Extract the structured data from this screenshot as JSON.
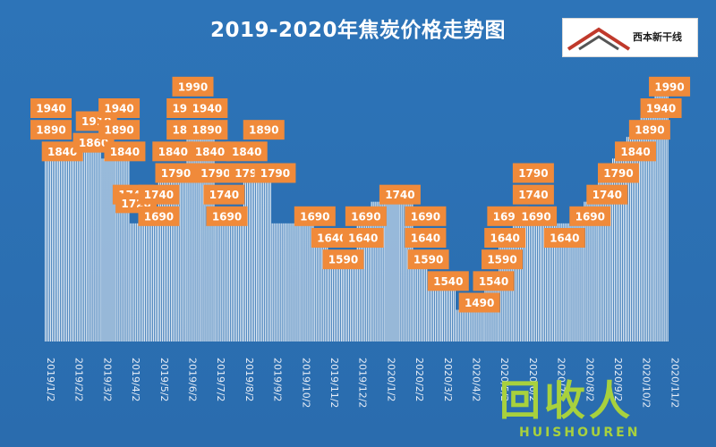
{
  "chart_data": {
    "type": "bar",
    "title": "2019-2020年焦炭价格走势图",
    "xlabel": "",
    "ylabel": "",
    "ylim": [
      1400,
      2000
    ],
    "categories": [
      "2019/1/2",
      "2019/2/2",
      "2019/3/2",
      "2019/4/2",
      "2019/5/2",
      "2019/6/2",
      "2019/7/2",
      "2019/8/2",
      "2019/9/2",
      "2019/10/2",
      "2019/11/2",
      "2019/12/2",
      "2020/1/2",
      "2020/2/2",
      "2020/3/2",
      "2020/4/2",
      "2020/5/2",
      "2020/6/2",
      "2020/7/2",
      "2020/8/2",
      "2020/9/2",
      "2020/10/2",
      "2020/11/2"
    ],
    "data_labels": [
      {
        "text": "1940",
        "value": 1940,
        "xi": 0.0
      },
      {
        "text": "1890",
        "value": 1890,
        "xi": 0.0
      },
      {
        "text": "1840",
        "value": 1840,
        "xi": 0.4
      },
      {
        "text": "1910",
        "value": 1910,
        "xi": 1.6
      },
      {
        "text": "1860",
        "value": 1860,
        "xi": 1.5
      },
      {
        "text": "1940",
        "value": 1940,
        "xi": 2.4
      },
      {
        "text": "1890",
        "value": 1890,
        "xi": 2.4
      },
      {
        "text": "1840",
        "value": 1840,
        "xi": 2.6
      },
      {
        "text": "1740",
        "value": 1740,
        "xi": 2.9
      },
      {
        "text": "1720",
        "value": 1720,
        "xi": 3.0
      },
      {
        "text": "1740",
        "value": 1740,
        "xi": 3.8
      },
      {
        "text": "1690",
        "value": 1690,
        "xi": 3.8
      },
      {
        "text": "1840",
        "value": 1840,
        "xi": 4.3
      },
      {
        "text": "1790",
        "value": 1790,
        "xi": 4.4
      },
      {
        "text": "1990",
        "value": 1990,
        "xi": 5.0
      },
      {
        "text": "1940",
        "value": 1940,
        "xi": 4.8
      },
      {
        "text": "1940",
        "value": 1940,
        "xi": 5.5
      },
      {
        "text": "1890",
        "value": 1890,
        "xi": 4.8
      },
      {
        "text": "1890",
        "value": 1890,
        "xi": 5.5
      },
      {
        "text": "1840",
        "value": 1840,
        "xi": 5.6
      },
      {
        "text": "1790",
        "value": 1790,
        "xi": 5.8
      },
      {
        "text": "1740",
        "value": 1740,
        "xi": 6.1
      },
      {
        "text": "1690",
        "value": 1690,
        "xi": 6.2
      },
      {
        "text": "1840",
        "value": 1840,
        "xi": 6.9
      },
      {
        "text": "1790",
        "value": 1790,
        "xi": 7.0
      },
      {
        "text": "1890",
        "value": 1890,
        "xi": 7.5
      },
      {
        "text": "1790",
        "value": 1790,
        "xi": 7.9
      },
      {
        "text": "1690",
        "value": 1690,
        "xi": 9.3
      },
      {
        "text": "1640",
        "value": 1640,
        "xi": 9.9
      },
      {
        "text": "1590",
        "value": 1590,
        "xi": 10.3
      },
      {
        "text": "1640",
        "value": 1640,
        "xi": 11.0
      },
      {
        "text": "1690",
        "value": 1690,
        "xi": 11.1
      },
      {
        "text": "1740",
        "value": 1740,
        "xi": 12.3
      },
      {
        "text": "1690",
        "value": 1690,
        "xi": 13.2
      },
      {
        "text": "1640",
        "value": 1640,
        "xi": 13.2
      },
      {
        "text": "1590",
        "value": 1590,
        "xi": 13.3
      },
      {
        "text": "1540",
        "value": 1540,
        "xi": 14.0
      },
      {
        "text": "1490",
        "value": 1490,
        "xi": 15.1
      },
      {
        "text": "1540",
        "value": 1540,
        "xi": 15.6
      },
      {
        "text": "1590",
        "value": 1590,
        "xi": 15.9
      },
      {
        "text": "1640",
        "value": 1640,
        "xi": 16.0
      },
      {
        "text": "1690",
        "value": 1690,
        "xi": 16.1
      },
      {
        "text": "1790",
        "value": 1790,
        "xi": 17.0
      },
      {
        "text": "1740",
        "value": 1740,
        "xi": 17.0
      },
      {
        "text": "1690",
        "value": 1690,
        "xi": 17.1
      },
      {
        "text": "1640",
        "value": 1640,
        "xi": 18.1
      },
      {
        "text": "1690",
        "value": 1690,
        "xi": 19.0
      },
      {
        "text": "1740",
        "value": 1740,
        "xi": 19.6
      },
      {
        "text": "1790",
        "value": 1790,
        "xi": 20.0
      },
      {
        "text": "1840",
        "value": 1840,
        "xi": 20.6
      },
      {
        "text": "1890",
        "value": 1890,
        "xi": 21.1
      },
      {
        "text": "1940",
        "value": 1940,
        "xi": 21.5
      },
      {
        "text": "1990",
        "value": 1990,
        "xi": 21.8
      }
    ],
    "columns": [
      {
        "xi": 0.0,
        "value": 1840
      },
      {
        "xi": 0.5,
        "value": 1840
      },
      {
        "xi": 1.0,
        "value": 1860
      },
      {
        "xi": 1.5,
        "value": 1860
      },
      {
        "xi": 2.0,
        "value": 1840
      },
      {
        "xi": 2.5,
        "value": 1840
      },
      {
        "xi": 3.0,
        "value": 1690
      },
      {
        "xi": 3.5,
        "value": 1690
      },
      {
        "xi": 4.0,
        "value": 1790
      },
      {
        "xi": 4.5,
        "value": 1790
      },
      {
        "xi": 5.0,
        "value": 1890
      },
      {
        "xi": 5.5,
        "value": 1890
      },
      {
        "xi": 6.0,
        "value": 1690
      },
      {
        "xi": 6.5,
        "value": 1690
      },
      {
        "xi": 7.0,
        "value": 1790
      },
      {
        "xi": 7.5,
        "value": 1790
      },
      {
        "xi": 8.0,
        "value": 1690
      },
      {
        "xi": 8.5,
        "value": 1690
      },
      {
        "xi": 9.0,
        "value": 1690
      },
      {
        "xi": 9.5,
        "value": 1640
      },
      {
        "xi": 10.0,
        "value": 1590
      },
      {
        "xi": 10.5,
        "value": 1590
      },
      {
        "xi": 11.0,
        "value": 1690
      },
      {
        "xi": 11.5,
        "value": 1740
      },
      {
        "xi": 12.0,
        "value": 1740
      },
      {
        "xi": 12.5,
        "value": 1740
      },
      {
        "xi": 13.0,
        "value": 1590
      },
      {
        "xi": 13.5,
        "value": 1540
      },
      {
        "xi": 14.0,
        "value": 1540
      },
      {
        "xi": 14.5,
        "value": 1490
      },
      {
        "xi": 15.0,
        "value": 1490
      },
      {
        "xi": 15.5,
        "value": 1540
      },
      {
        "xi": 16.0,
        "value": 1640
      },
      {
        "xi": 16.5,
        "value": 1690
      },
      {
        "xi": 17.0,
        "value": 1690
      },
      {
        "xi": 17.5,
        "value": 1690
      },
      {
        "xi": 18.0,
        "value": 1690
      },
      {
        "xi": 18.5,
        "value": 1690
      },
      {
        "xi": 19.0,
        "value": 1740
      },
      {
        "xi": 19.5,
        "value": 1790
      },
      {
        "xi": 20.0,
        "value": 1840
      },
      {
        "xi": 20.5,
        "value": 1890
      },
      {
        "xi": 21.0,
        "value": 1940
      },
      {
        "xi": 21.5,
        "value": 1990
      }
    ],
    "grid": false,
    "legend": "none"
  },
  "logo": {
    "text": "西本新干线"
  },
  "watermark": {
    "text": "回收人",
    "sub": "HUISHOUREN"
  },
  "colors": {
    "background": "#2a6fb3",
    "label_box": "#f08a3a",
    "bar": "#ffffff",
    "watermark": "#a8d13d"
  }
}
